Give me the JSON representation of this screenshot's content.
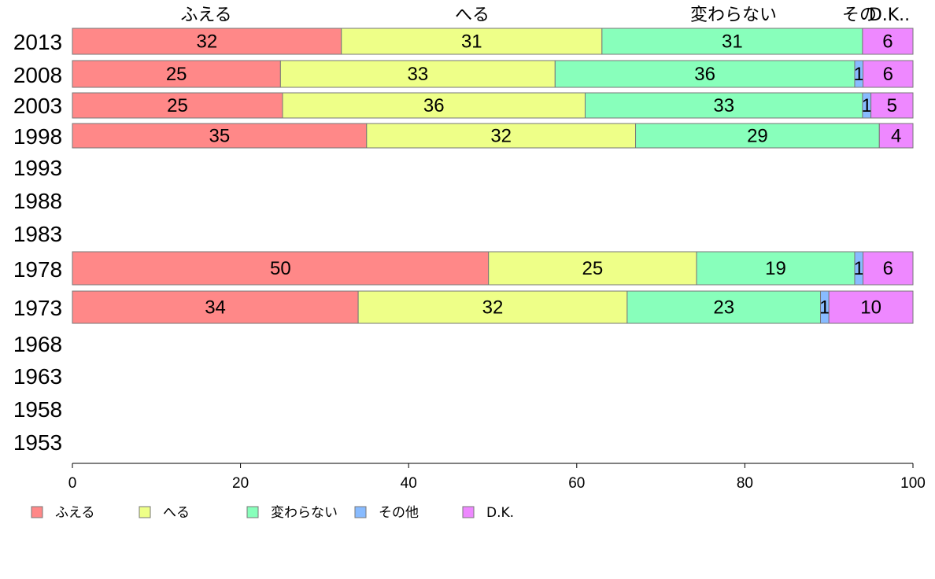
{
  "chart_data": {
    "type": "bar",
    "orientation": "horizontal",
    "stacked": true,
    "categories": [
      "2013",
      "2008",
      "2003",
      "1998",
      "1993",
      "1988",
      "1983",
      "1978",
      "1973",
      "1968",
      "1963",
      "1958",
      "1953"
    ],
    "series": [
      {
        "name": "ふえる",
        "color": "#ff8888",
        "values": [
          32,
          25,
          25,
          35,
          null,
          null,
          null,
          50,
          34,
          null,
          null,
          null,
          null
        ]
      },
      {
        "name": "へる",
        "color": "#eeff88",
        "values": [
          31,
          33,
          36,
          32,
          null,
          null,
          null,
          25,
          32,
          null,
          null,
          null,
          null
        ]
      },
      {
        "name": "変わらない",
        "color": "#88ffbb",
        "values": [
          31,
          36,
          33,
          29,
          null,
          null,
          null,
          19,
          23,
          null,
          null,
          null,
          null
        ]
      },
      {
        "name": "その他",
        "color": "#88bbff",
        "values": [
          0,
          1,
          1,
          0,
          null,
          null,
          null,
          1,
          1,
          null,
          null,
          null,
          null
        ]
      },
      {
        "name": "D.K.",
        "color": "#ee88ff",
        "values": [
          6,
          6,
          5,
          4,
          null,
          null,
          null,
          6,
          10,
          null,
          null,
          null,
          null
        ]
      }
    ],
    "top_labels": [
      "ふえる",
      "へる",
      "変わらない",
      "その",
      "D.K.."
    ],
    "xlim": [
      0,
      100
    ],
    "xticks": [
      "0",
      "20",
      "40",
      "60",
      "80",
      "100"
    ],
    "grid": false,
    "legend_position": "bottom-left"
  }
}
